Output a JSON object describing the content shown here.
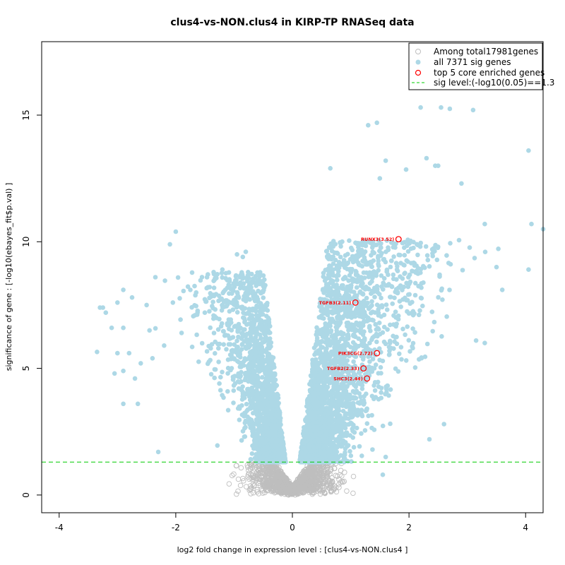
{
  "chart_data": {
    "type": "scatter",
    "title": "clus4-vs-NON.clus4 in KIRP-TP RNASeq data",
    "xlabel": "log2 fold change in expression level : [clus4-vs-NON.clus4 ]",
    "ylabel": "significance of gene : [-log10(ebayes_fit$p.val) ]",
    "xlim": [
      -4.3,
      4.3
    ],
    "ylim": [
      -0.7,
      17.9
    ],
    "x_ticks": [
      -4,
      -2,
      0,
      2,
      4
    ],
    "y_ticks": [
      0,
      5,
      10,
      15
    ],
    "x_tick_labels": [
      "-4",
      "-2",
      "0",
      "2",
      "4"
    ],
    "y_tick_labels": [
      "0",
      "5",
      "10",
      "15"
    ],
    "grid": false,
    "legend_position": "top-right",
    "sig_level": 1.3,
    "colors": {
      "nonsig": "#bebebe",
      "sig": "#add8e6",
      "core": "#ff0000",
      "threshold": "#00cc00"
    },
    "legend": [
      {
        "label": "Among total17981genes",
        "marker": "open-circle-gray"
      },
      {
        "label": "all 7371 sig genes",
        "marker": "filled-circle-lightblue"
      },
      {
        "label": "top 5 core enriched genes",
        "marker": "open-circle-red"
      },
      {
        "label": "sig level:(-log10(0.05)==1.3",
        "marker": "dashed-line-green"
      }
    ],
    "core_genes": [
      {
        "label": "RUNX3(3.52)",
        "x": 1.82,
        "y": 10.1
      },
      {
        "label": "TGFB3(2.11)",
        "x": 1.08,
        "y": 7.6
      },
      {
        "label": "PIK3CG(2.72)",
        "x": 1.45,
        "y": 5.6
      },
      {
        "label": "TGFB2(2.33)",
        "x": 1.22,
        "y": 5.0
      },
      {
        "label": "SHC3(2.44)",
        "x": 1.28,
        "y": 4.6
      }
    ],
    "outlier_points": [
      {
        "x": 2.2,
        "y": 15.3
      },
      {
        "x": 2.55,
        "y": 15.3
      },
      {
        "x": 2.7,
        "y": 15.25
      },
      {
        "x": 3.1,
        "y": 15.2
      },
      {
        "x": 1.45,
        "y": 14.7
      },
      {
        "x": 1.3,
        "y": 14.6
      },
      {
        "x": 4.05,
        "y": 13.6
      },
      {
        "x": 2.3,
        "y": 13.3
      },
      {
        "x": 2.45,
        "y": 13.0
      },
      {
        "x": 2.5,
        "y": 13.0
      },
      {
        "x": 1.6,
        "y": 13.2
      },
      {
        "x": 0.65,
        "y": 12.9
      },
      {
        "x": 1.95,
        "y": 12.85
      },
      {
        "x": 1.5,
        "y": 12.5
      },
      {
        "x": 2.9,
        "y": 12.3
      },
      {
        "x": 4.1,
        "y": 10.7
      },
      {
        "x": 4.3,
        "y": 10.5
      },
      {
        "x": 3.3,
        "y": 10.7
      },
      {
        "x": 3.5,
        "y": 9.0
      },
      {
        "x": 4.05,
        "y": 8.9
      },
      {
        "x": 3.6,
        "y": 8.1
      },
      {
        "x": 3.3,
        "y": 6.0
      },
      {
        "x": 3.15,
        "y": 6.1
      },
      {
        "x": 2.6,
        "y": 2.8
      },
      {
        "x": 2.35,
        "y": 2.2
      },
      {
        "x": 1.6,
        "y": 1.5
      },
      {
        "x": 1.55,
        "y": 0.8
      },
      {
        "x": -2.0,
        "y": 10.4
      },
      {
        "x": -2.1,
        "y": 9.9
      },
      {
        "x": -3.3,
        "y": 7.4
      },
      {
        "x": -3.25,
        "y": 7.4
      },
      {
        "x": -3.2,
        "y": 7.2
      },
      {
        "x": -2.9,
        "y": 8.1
      },
      {
        "x": -3.0,
        "y": 7.6
      },
      {
        "x": -2.75,
        "y": 7.8
      },
      {
        "x": -2.35,
        "y": 8.6
      },
      {
        "x": -2.5,
        "y": 7.5
      },
      {
        "x": -3.1,
        "y": 6.6
      },
      {
        "x": -2.9,
        "y": 6.6
      },
      {
        "x": -3.35,
        "y": 5.65
      },
      {
        "x": -3.0,
        "y": 5.6
      },
      {
        "x": -3.05,
        "y": 4.8
      },
      {
        "x": -2.8,
        "y": 5.6
      },
      {
        "x": -2.9,
        "y": 4.9
      },
      {
        "x": -2.6,
        "y": 5.2
      },
      {
        "x": -2.7,
        "y": 4.6
      },
      {
        "x": -2.9,
        "y": 3.6
      },
      {
        "x": -2.65,
        "y": 3.6
      },
      {
        "x": -2.45,
        "y": 6.5
      },
      {
        "x": -2.4,
        "y": 5.4
      },
      {
        "x": -2.3,
        "y": 1.7
      },
      {
        "x": -1.75,
        "y": 8.1
      },
      {
        "x": -1.45,
        "y": 8.2
      },
      {
        "x": -1.35,
        "y": 8.8
      },
      {
        "x": -1.2,
        "y": 8.9
      },
      {
        "x": -0.95,
        "y": 9.5
      },
      {
        "x": -0.85,
        "y": 9.4
      },
      {
        "x": -0.8,
        "y": 9.6
      },
      {
        "x": -0.9,
        "y": 8.6
      },
      {
        "x": -1.1,
        "y": 8.2
      },
      {
        "x": -2.05,
        "y": 7.6
      },
      {
        "x": -2.2,
        "y": 5.9
      },
      {
        "x": -1.9,
        "y": 6.4
      }
    ]
  }
}
